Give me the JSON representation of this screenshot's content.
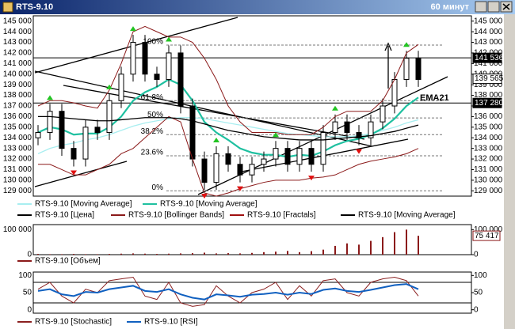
{
  "window": {
    "title": "RTS-9.10",
    "timeframe": "60 минут"
  },
  "chart_data": [
    {
      "type": "candlestick",
      "ylim": [
        128500,
        145500
      ],
      "yticks": [
        {
          "value": 145000,
          "label": "145 000"
        },
        {
          "value": 144000,
          "label": "144 000"
        },
        {
          "value": 143000,
          "label": "143 000"
        },
        {
          "value": 142000,
          "label": "142 000"
        },
        {
          "value": 141000,
          "label": "141 000"
        },
        {
          "value": 140000,
          "label": "140 000"
        },
        {
          "value": 139000,
          "label": "139 000"
        },
        {
          "value": 138000,
          "label": "138 000"
        },
        {
          "value": 137000,
          "label": "137 000"
        },
        {
          "value": 136000,
          "label": "136 000"
        },
        {
          "value": 135000,
          "label": "135 000"
        },
        {
          "value": 134000,
          "label": "134 000"
        },
        {
          "value": 133000,
          "label": "133 000"
        },
        {
          "value": 132000,
          "label": "132 000"
        },
        {
          "value": 131000,
          "label": "131 000"
        },
        {
          "value": 130000,
          "label": "130 000"
        },
        {
          "value": 129000,
          "label": "129 000"
        }
      ],
      "fib_levels": [
        {
          "value": 142740,
          "label": "100%"
        },
        {
          "value": 137500,
          "label": "61.8%"
        },
        {
          "value": 135870,
          "label": "50%"
        },
        {
          "value": 134300,
          "label": "38.2%"
        },
        {
          "value": 132300,
          "label": "23.6%"
        },
        {
          "value": 129000,
          "label": "0%"
        }
      ],
      "price_labels": [
        {
          "value": 141536,
          "label": "141 536",
          "color": "#000000"
        },
        {
          "value": 139565,
          "label": "139 565",
          "color": "#ffffff"
        },
        {
          "value": 137280,
          "label": "137 280",
          "color": "#000000"
        }
      ],
      "annotation": "EMA21",
      "series": [
        {
          "name": "RTS-9.10 [Moving Average]",
          "kind": "line",
          "color": "#a8eef0",
          "values": [
            132500,
            133000,
            133300,
            133500,
            133800,
            134000,
            134300,
            134700,
            135100,
            135400,
            135600,
            135800,
            135900,
            135900,
            135800,
            135600,
            135400,
            135200,
            135000,
            134800,
            134600,
            134400,
            134300,
            134200,
            134100,
            134100,
            134100,
            134200,
            134400,
            134700,
            135000,
            135400,
            135700
          ]
        },
        {
          "name": "RTS-9.10 [Moving Average]",
          "kind": "line",
          "color": "#1fc0a0",
          "values": [
            134500,
            135000,
            134800,
            134300,
            134400,
            134400,
            135000,
            136000,
            137500,
            138300,
            138800,
            139500,
            139000,
            137500,
            135500,
            134500,
            133800,
            133000,
            132600,
            132400,
            132400,
            132200,
            132400,
            132300,
            132700,
            133300,
            133700,
            133900,
            134300,
            134900,
            135800,
            137000,
            137800
          ]
        },
        {
          "name": "RTS-9.10 [Цена]",
          "kind": "candles",
          "color": "#000000",
          "open": [
            134000,
            134500,
            136500,
            133000,
            132000,
            135000,
            134500,
            137500,
            140000,
            143000,
            140000,
            139500,
            142000,
            137000,
            132000,
            129800,
            132500,
            131500,
            130500,
            131500,
            132000,
            133000,
            131500,
            133000,
            131500,
            134500,
            135500,
            134500,
            134000,
            135500,
            137000,
            139500,
            141500
          ],
          "high": [
            135200,
            137200,
            137200,
            133700,
            135700,
            135700,
            138200,
            140700,
            143700,
            143700,
            140700,
            142700,
            142700,
            137700,
            132700,
            133200,
            133200,
            132200,
            132200,
            132700,
            133700,
            133700,
            133700,
            133700,
            135200,
            136200,
            136200,
            135200,
            136200,
            137700,
            140200,
            142200,
            142200
          ],
          "low": [
            133300,
            133800,
            132300,
            131300,
            131300,
            133800,
            133800,
            136800,
            139300,
            139300,
            138800,
            138800,
            136300,
            131300,
            129100,
            129100,
            130800,
            129800,
            129800,
            130800,
            131300,
            130800,
            130800,
            130800,
            130800,
            133800,
            133800,
            133300,
            133300,
            134800,
            136300,
            138800,
            138800
          ],
          "close": [
            134500,
            136500,
            133000,
            132000,
            135000,
            134500,
            137500,
            140000,
            143000,
            140000,
            139500,
            142000,
            137000,
            132000,
            129800,
            132500,
            131500,
            130500,
            131500,
            132000,
            133000,
            131500,
            133000,
            131500,
            134500,
            135500,
            134500,
            134000,
            135500,
            137000,
            139500,
            141500,
            139500
          ]
        },
        {
          "name": "RTS-9.10 [Bollinger Bands]",
          "kind": "band",
          "color": "#8b1a1a",
          "upper": [
            137000,
            137500,
            137500,
            137300,
            137000,
            136800,
            138500,
            141000,
            144000,
            144500,
            144000,
            143500,
            143500,
            143000,
            141500,
            139500,
            137000,
            135500,
            134500,
            134500,
            134500,
            134300,
            134300,
            134300,
            135000,
            136000,
            136500,
            136500,
            136500,
            137500,
            139500,
            142000,
            142800
          ],
          "lower": [
            131500,
            131500,
            131000,
            130500,
            130500,
            131000,
            131500,
            132500,
            133000,
            134000,
            135000,
            136000,
            135500,
            132000,
            128800,
            128500,
            128800,
            129200,
            129500,
            129800,
            130000,
            130000,
            130000,
            130200,
            130300,
            130500,
            131000,
            131500,
            131800,
            132000,
            132200,
            132500,
            133000
          ]
        },
        {
          "name": "RTS-9.10 [Fractals]",
          "kind": "fractals",
          "color": "#a01010",
          "up_color": "#22c422",
          "down_color": "#e01010",
          "up": [
            1,
            6,
            8,
            11,
            15,
            20,
            25,
            31
          ],
          "down": [
            3,
            14,
            17,
            23,
            27
          ]
        },
        {
          "name": "RTS-9.10 [Moving Average]",
          "kind": "line",
          "color": "#000000",
          "values": [
            136000,
            136000,
            135900,
            135800,
            135700,
            135600,
            135600,
            135700,
            135800,
            135900,
            135900,
            135900,
            135800,
            135600,
            135300,
            135000,
            134700,
            134500,
            134300,
            134100,
            134000,
            133900,
            133800,
            133800,
            133800,
            133900,
            134000,
            134100,
            134200,
            134400,
            134600,
            134900,
            135200
          ]
        }
      ]
    },
    {
      "type": "bar",
      "ylim": [
        0,
        120000
      ],
      "yticks": [
        0,
        {
          "value": 100000,
          "label": "100 000"
        }
      ],
      "last_value_label": "75 417",
      "series": [
        {
          "name": "RTS-9.10 [Объем]",
          "color": "#8b1a1a",
          "values": [
            3000,
            2000,
            2000,
            3000,
            2000,
            2000,
            3000,
            4000,
            5000,
            4000,
            3000,
            4000,
            5000,
            6000,
            8000,
            5000,
            6000,
            5000,
            7000,
            10000,
            12000,
            15000,
            10000,
            14000,
            20000,
            35000,
            45000,
            40000,
            55000,
            70000,
            90000,
            100000,
            75417
          ]
        }
      ]
    },
    {
      "type": "line",
      "ylim": [
        -10,
        110
      ],
      "yticks": [
        0,
        50,
        100
      ],
      "levels": [
        20,
        80
      ],
      "series": [
        {
          "name": "RTS-9.10 [Stochastic]",
          "color": "#8b2020",
          "values": [
            60,
            80,
            40,
            20,
            60,
            50,
            85,
            90,
            95,
            40,
            30,
            80,
            20,
            10,
            15,
            70,
            40,
            20,
            50,
            60,
            80,
            30,
            70,
            40,
            85,
            90,
            50,
            40,
            80,
            90,
            95,
            85,
            40
          ]
        },
        {
          "name": "RTS-9.10 [RSI]",
          "color": "#1060c0",
          "values": [
            55,
            60,
            45,
            40,
            52,
            50,
            60,
            65,
            70,
            55,
            52,
            60,
            45,
            35,
            30,
            45,
            42,
            38,
            44,
            46,
            50,
            44,
            50,
            46,
            58,
            62,
            55,
            52,
            58,
            65,
            72,
            75,
            60
          ]
        }
      ]
    }
  ]
}
